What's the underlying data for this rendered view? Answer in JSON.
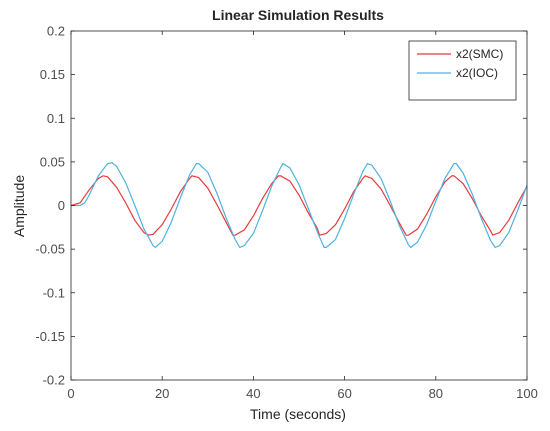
{
  "chart_data": {
    "type": "line",
    "title": "Linear Simulation Results",
    "xlabel": "Time (seconds)",
    "ylabel": "Amplitude",
    "xlim": [
      0,
      100
    ],
    "ylim": [
      -0.2,
      0.2
    ],
    "xticks": [
      0,
      20,
      40,
      60,
      80,
      100
    ],
    "yticks": [
      0.2,
      0.15,
      0.1,
      0.05,
      0,
      -0.05,
      -0.1,
      -0.15,
      -0.2
    ],
    "xtick_labels": [
      "0",
      "20",
      "40",
      "60",
      "80",
      "100"
    ],
    "ytick_labels": [
      "0.2",
      "0.15",
      "0.1",
      "0.05",
      "0",
      "-0.05",
      "-0.1",
      "-0.15",
      "-0.2"
    ],
    "grid": false,
    "legend_position": "top-right",
    "series": [
      {
        "name": "x2(SMC)",
        "color": "#e8393d",
        "x": [
          0,
          2,
          4,
          6,
          7,
          8,
          10,
          12,
          14,
          16,
          17,
          18,
          20,
          22,
          24,
          26,
          26.5,
          28,
          30,
          32,
          34,
          35.5,
          36,
          38,
          40,
          42,
          44,
          45.5,
          46,
          48,
          50,
          52,
          54,
          54.5,
          56,
          58,
          60,
          62,
          64,
          64.5,
          66,
          68,
          70,
          72,
          73.5,
          74,
          76,
          78,
          80,
          82,
          83.5,
          84,
          86,
          88,
          90,
          92,
          92.5,
          94,
          96,
          98,
          100
        ],
        "y": [
          0,
          0.003,
          0.018,
          0.031,
          0.034,
          0.033,
          0.021,
          0.003,
          -0.017,
          -0.031,
          -0.034,
          -0.033,
          -0.022,
          -0.004,
          0.016,
          0.031,
          0.034,
          0.032,
          0.02,
          0.001,
          -0.019,
          -0.034,
          -0.034,
          -0.028,
          -0.012,
          0.008,
          0.025,
          0.034,
          0.034,
          0.028,
          0.012,
          -0.008,
          -0.026,
          -0.034,
          -0.032,
          -0.022,
          -0.004,
          0.016,
          0.031,
          0.034,
          0.031,
          0.019,
          0.0,
          -0.02,
          -0.034,
          -0.034,
          -0.027,
          -0.01,
          0.01,
          0.027,
          0.034,
          0.034,
          0.025,
          0.008,
          -0.012,
          -0.029,
          -0.034,
          -0.031,
          -0.017,
          0.003,
          0.022
        ]
      },
      {
        "name": "x2(IOC)",
        "color": "#4fb3e0",
        "x": [
          0,
          2,
          3,
          4,
          6,
          8,
          9,
          10,
          12,
          14,
          16,
          18,
          18.5,
          20,
          22,
          24,
          26,
          27.5,
          28,
          30,
          32,
          34,
          36,
          37,
          38,
          40,
          42,
          44,
          46,
          46.5,
          48,
          50,
          52,
          54,
          55.5,
          56,
          58,
          60,
          62,
          64,
          65,
          66,
          68,
          70,
          72,
          74,
          74.5,
          76,
          78,
          80,
          82,
          84,
          84.5,
          86,
          88,
          90,
          92,
          93,
          94,
          96,
          98,
          100
        ],
        "y": [
          0,
          0.0,
          0.003,
          0.012,
          0.034,
          0.048,
          0.049,
          0.045,
          0.026,
          0.0,
          -0.027,
          -0.046,
          -0.048,
          -0.041,
          -0.019,
          0.009,
          0.035,
          0.048,
          0.048,
          0.038,
          0.014,
          -0.014,
          -0.039,
          -0.048,
          -0.046,
          -0.032,
          -0.006,
          0.022,
          0.044,
          0.048,
          0.043,
          0.024,
          -0.003,
          -0.03,
          -0.048,
          -0.048,
          -0.039,
          -0.015,
          0.013,
          0.039,
          0.048,
          0.046,
          0.031,
          0.005,
          -0.023,
          -0.045,
          -0.048,
          -0.042,
          -0.022,
          0.005,
          0.031,
          0.048,
          0.048,
          0.037,
          0.013,
          -0.015,
          -0.04,
          -0.048,
          -0.046,
          -0.031,
          -0.005,
          0.023
        ]
      }
    ]
  }
}
